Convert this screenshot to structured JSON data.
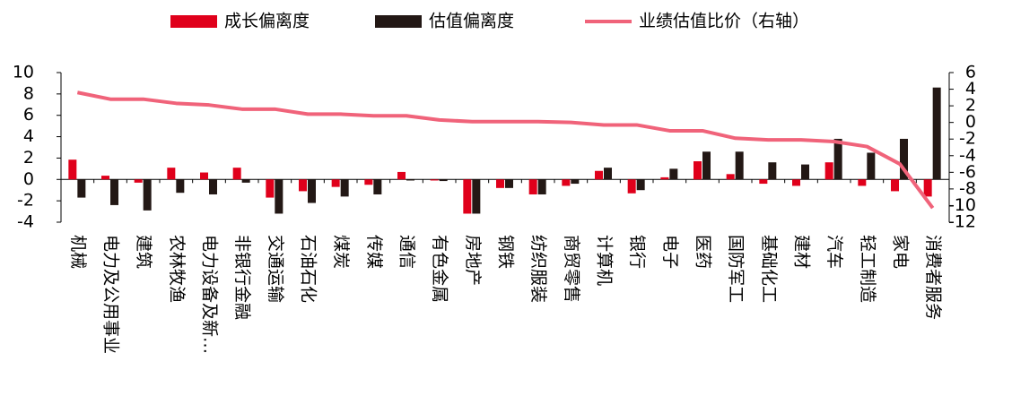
{
  "chart_data": {
    "type": "bar-line",
    "categories": [
      "机械",
      "电力及公用事业",
      "建筑",
      "农林牧渔",
      "电力设备及新…",
      "非银行金融",
      "交通运输",
      "石油石化",
      "煤炭",
      "传媒",
      "通信",
      "有色金属",
      "房地产",
      "钢铁",
      "纺织服装",
      "商贸零售",
      "计算机",
      "银行",
      "电子",
      "医药",
      "国防军工",
      "基础化工",
      "建材",
      "汽车",
      "轻工制造",
      "家电",
      "消费者服务"
    ],
    "series": [
      {
        "name": "成长偏离度",
        "color": "#e0001b",
        "type": "bar",
        "values": [
          1.85,
          0.35,
          -0.3,
          1.1,
          0.65,
          1.1,
          -1.7,
          -1.1,
          -0.7,
          -0.5,
          0.7,
          -0.1,
          -3.2,
          -0.8,
          -1.4,
          -0.6,
          0.8,
          -1.3,
          0.2,
          1.7,
          0.5,
          -0.4,
          -0.6,
          1.6,
          -0.6,
          -1.1,
          -1.6
        ]
      },
      {
        "name": "估值偏离度",
        "color": "#231815",
        "type": "bar",
        "values": [
          -1.7,
          -2.4,
          -2.9,
          -1.25,
          -1.4,
          -0.3,
          -3.2,
          -2.2,
          -1.6,
          -1.4,
          -0.1,
          -0.15,
          -3.2,
          -0.8,
          -1.4,
          -0.4,
          1.1,
          -1.0,
          1.0,
          2.6,
          2.6,
          1.6,
          1.4,
          3.8,
          2.5,
          3.8,
          8.6
        ]
      },
      {
        "name": "业绩估值比价（右轴）",
        "color": "#f0637a",
        "type": "line",
        "axis": "y2",
        "values": [
          3.6,
          2.8,
          2.8,
          2.3,
          2.1,
          1.6,
          1.6,
          1.0,
          1.0,
          0.8,
          0.8,
          0.3,
          0.1,
          0.1,
          0.1,
          0,
          -0.3,
          -0.3,
          -1.0,
          -1.0,
          -1.9,
          -2.1,
          -2.1,
          -2.3,
          -2.9,
          -5.0,
          -10.3
        ]
      }
    ],
    "ylim": [
      -4,
      10
    ],
    "yticks": [
      10,
      8,
      6,
      4,
      2,
      0,
      -2,
      -4
    ],
    "y2lim": [
      -12,
      6
    ],
    "y2ticks": [
      6,
      4,
      2,
      0,
      -2,
      -4,
      -6,
      -8,
      -10,
      -12
    ]
  }
}
